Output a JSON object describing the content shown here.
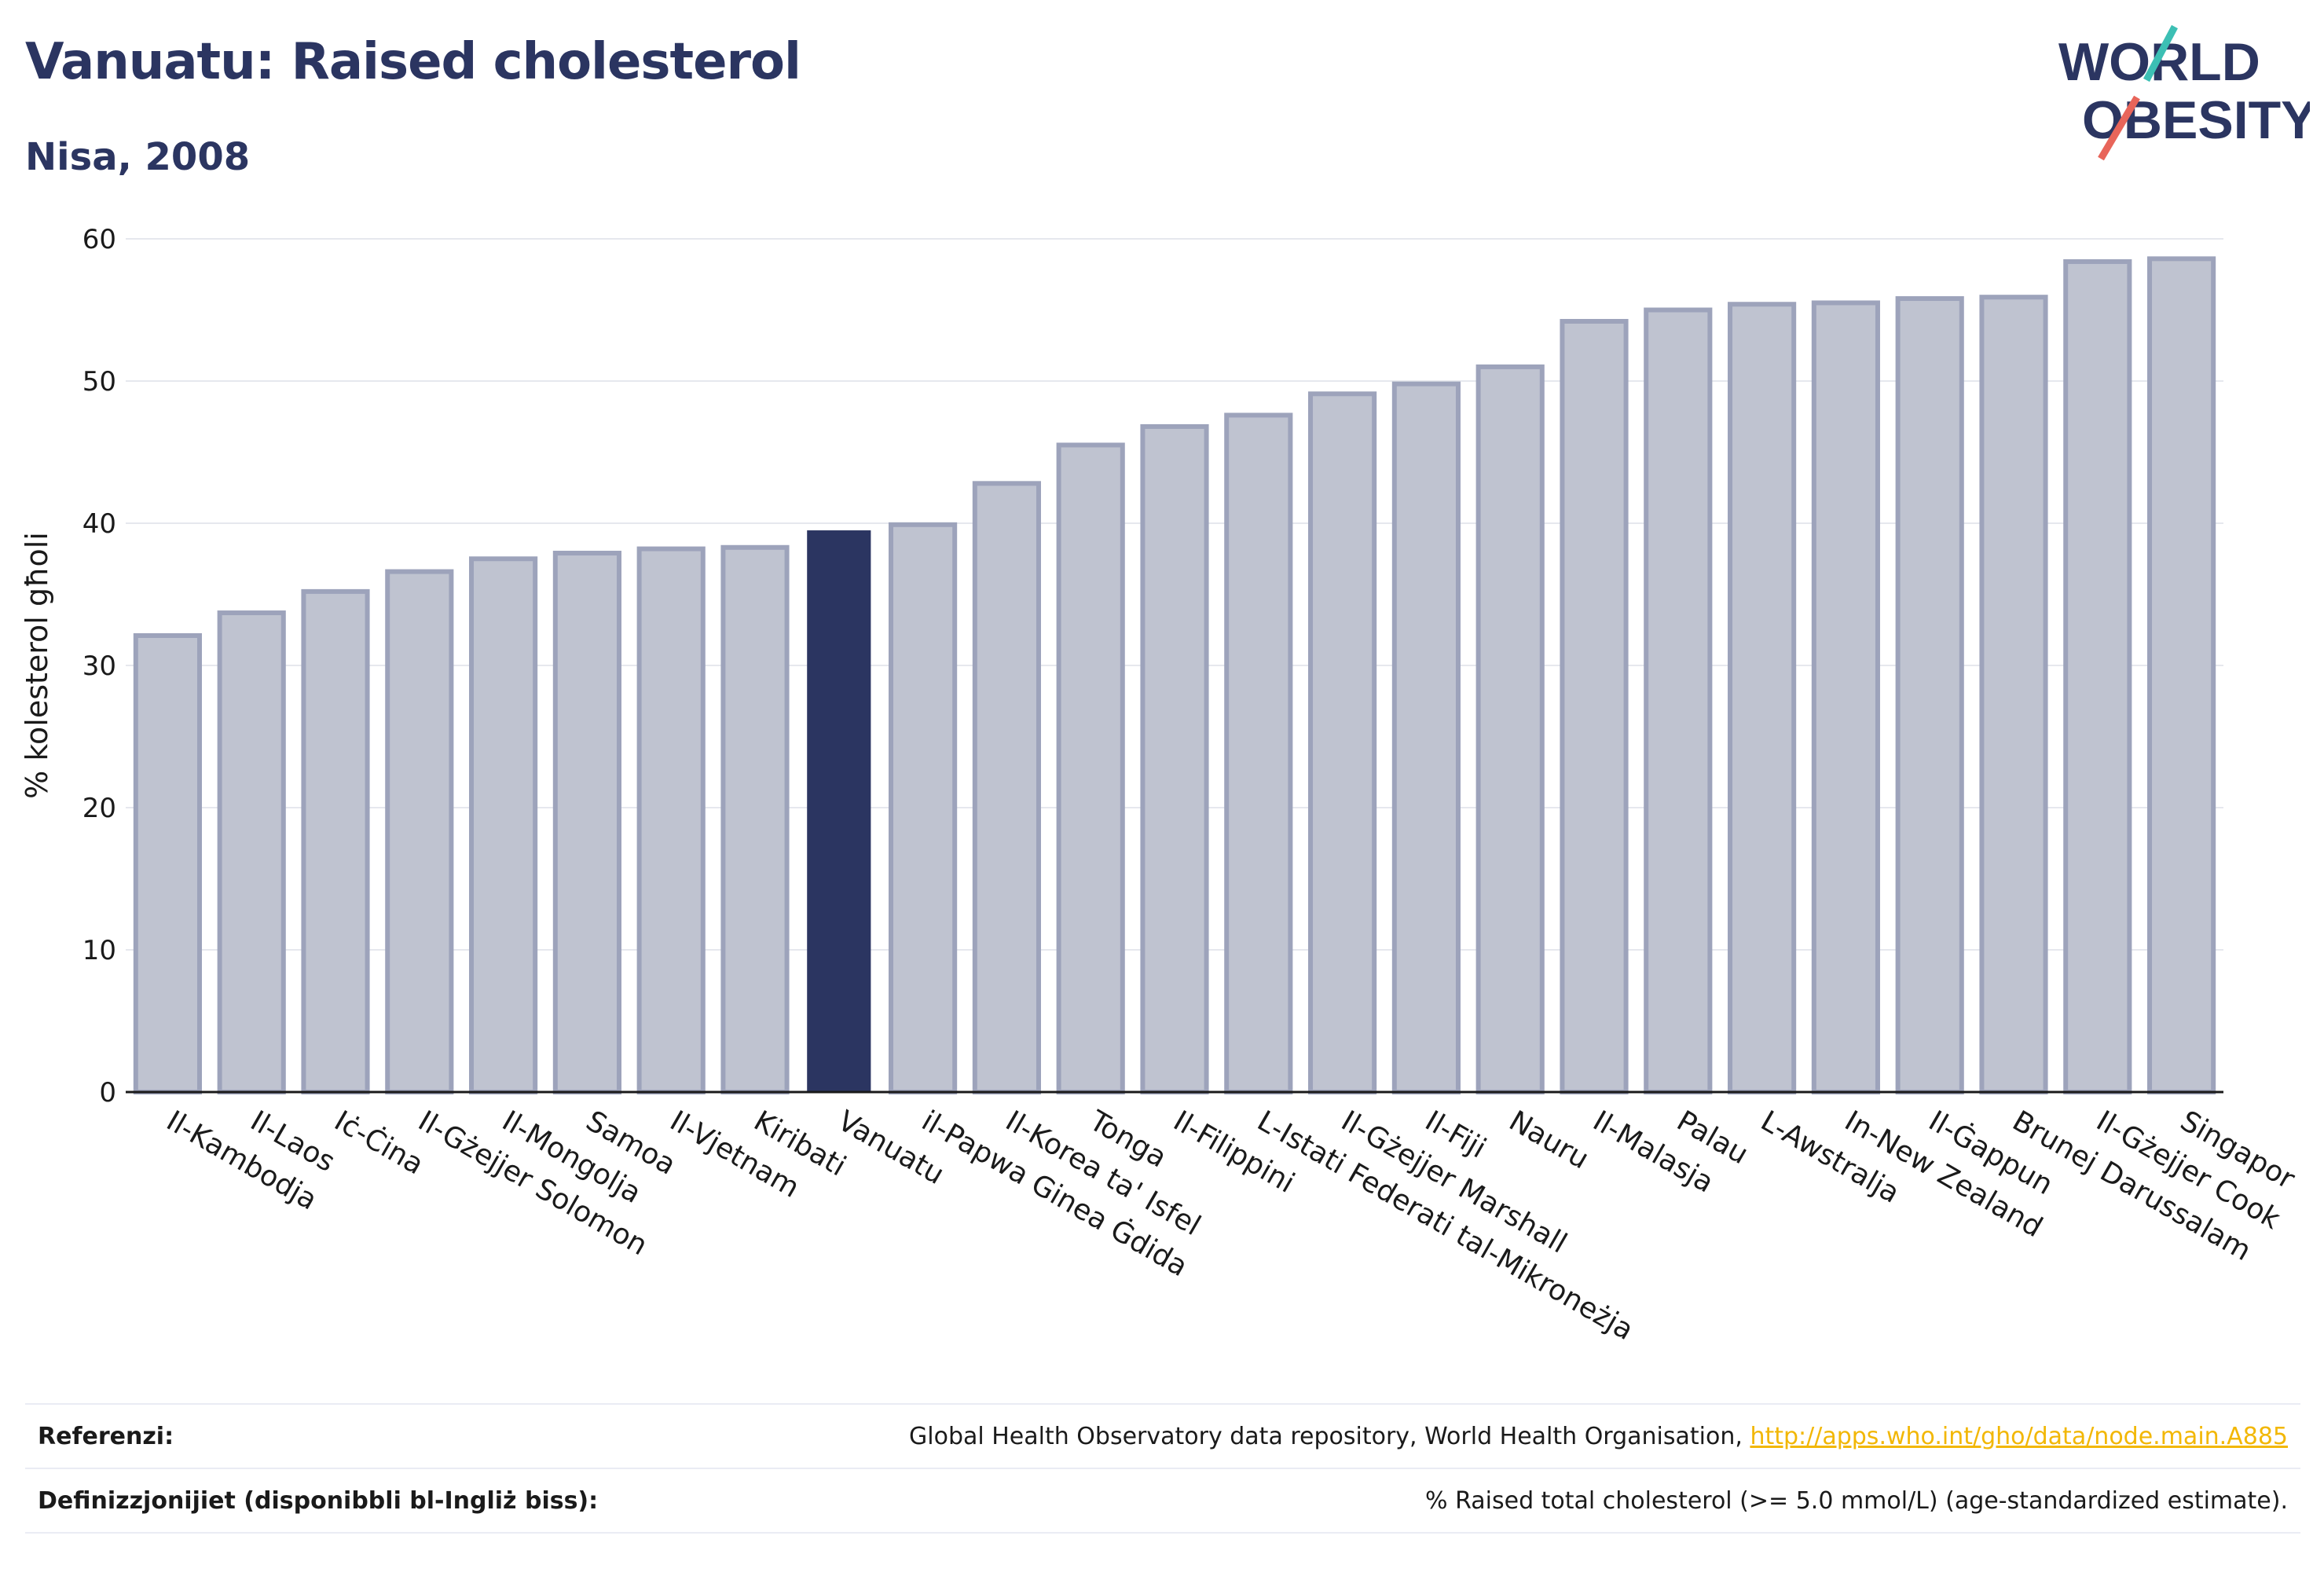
{
  "header": {
    "title": "Vanuatu: Raised cholesterol",
    "subtitle": "Nisa, 2008",
    "logo_line1": "WORLD",
    "logo_line2": "OBESITY"
  },
  "colors": {
    "highlight": "#2b3561",
    "bar_fill": "#bfc3d0",
    "bar_stroke": "#9da3bb",
    "text_dark": "#2b3561",
    "link": "#f2b705",
    "logo_teal": "#3cbfb4",
    "logo_coral": "#e8655a"
  },
  "chart_data": {
    "type": "bar",
    "title": "Vanuatu: Raised cholesterol",
    "subtitle": "Nisa, 2008",
    "xlabel": "",
    "ylabel": "% kolesterol għoli",
    "ylim": [
      0,
      60
    ],
    "yticks": [
      0,
      10,
      20,
      30,
      40,
      50,
      60
    ],
    "grid": true,
    "highlight_category": "Vanuatu",
    "categories": [
      "Il-Kambodja",
      "Il-Laos",
      "Iċ-Ċina",
      "Il-Gżejjer Solomon",
      "Il-Mongolja",
      "Samoa",
      "Il-Vjetnam",
      "Kiribati",
      "Vanuatu",
      "il-Papwa Ginea Ġdida",
      "Il-Korea ta' Isfel",
      "Tonga",
      "Il-Filippini",
      "L-Istati Federati tal-Mikroneżja",
      "Il-Gżejjer Marshall",
      "Il-Fiji",
      "Nauru",
      "Il-Malasja",
      "Palau",
      "L-Awstralja",
      "In-New Zealand",
      "Il-Ġappun",
      "Brunej Darussalam",
      "Il-Gżejjer Cook",
      "Singapor"
    ],
    "values": [
      32.1,
      33.7,
      35.2,
      36.6,
      37.5,
      37.9,
      38.2,
      38.3,
      39.5,
      39.9,
      42.8,
      45.5,
      46.8,
      47.6,
      49.1,
      49.8,
      51.0,
      54.2,
      55.0,
      55.4,
      55.5,
      55.8,
      55.9,
      58.4,
      58.6
    ]
  },
  "footer": {
    "references_label": "Referenzi:",
    "references_text": "Global Health Observatory data repository, World Health Organisation, ",
    "references_link": "http://apps.who.int/gho/data/node.main.A885",
    "definitions_label": "Definizzjonijiet (disponibbli bl-Ingliż biss):",
    "definitions_text": "% Raised total cholesterol (>= 5.0 mmol/L) (age-standardized estimate)."
  }
}
